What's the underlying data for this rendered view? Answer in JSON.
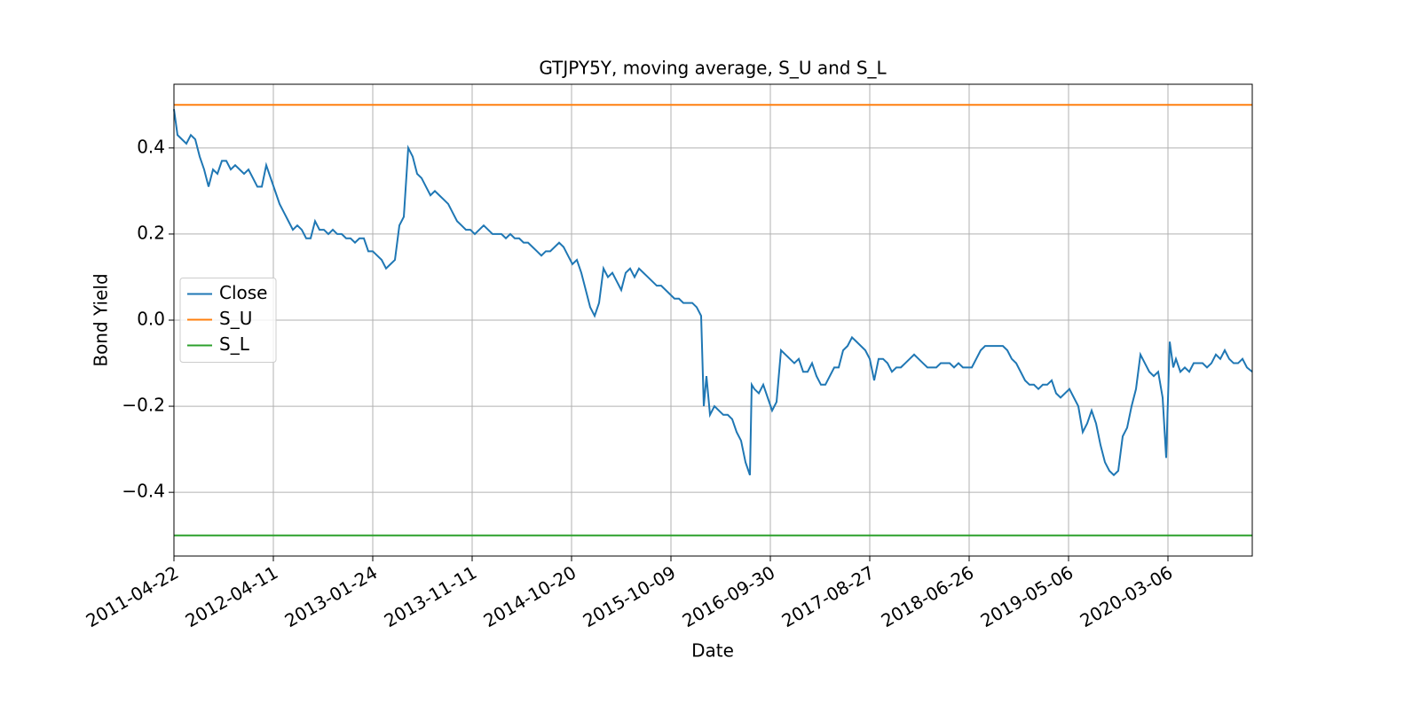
{
  "chart_data": {
    "type": "line",
    "title": "GTJPY5Y, moving average, S_U and S_L",
    "x_label": "Date",
    "y_label": "Bond Yield",
    "xlim": [
      0,
      1215
    ],
    "ylim": [
      -0.548,
      0.548
    ],
    "xticks": [
      {
        "value": 0,
        "label": "2011-04-22"
      },
      {
        "value": 112,
        "label": "2012-04-11"
      },
      {
        "value": 224,
        "label": "2013-01-24"
      },
      {
        "value": 336,
        "label": "2013-11-11"
      },
      {
        "value": 448,
        "label": "2014-10-20"
      },
      {
        "value": 560,
        "label": "2015-10-09"
      },
      {
        "value": 672,
        "label": "2016-09-30"
      },
      {
        "value": 784,
        "label": "2017-08-27"
      },
      {
        "value": 896,
        "label": "2018-06-26"
      },
      {
        "value": 1008,
        "label": "2019-05-06"
      },
      {
        "value": 1120,
        "label": "2020-03-06"
      }
    ],
    "yticks": [
      {
        "value": -0.4,
        "label": "−0.4"
      },
      {
        "value": -0.2,
        "label": "−0.2"
      },
      {
        "value": 0,
        "label": "0.0"
      },
      0.2,
      0.4
    ],
    "grid": true,
    "legend": "center left",
    "series": [
      {
        "name": "Close",
        "color": "#1f77b4",
        "x": [
          0,
          4,
          9,
          14,
          19,
          24,
          29,
          34,
          39,
          44,
          49,
          54,
          59,
          64,
          69,
          74,
          79,
          84,
          89,
          94,
          99,
          104,
          109,
          114,
          119,
          124,
          129,
          134,
          139,
          144,
          149,
          154,
          159,
          164,
          169,
          174,
          179,
          184,
          189,
          194,
          199,
          204,
          209,
          214,
          219,
          224,
          229,
          234,
          239,
          244,
          249,
          254,
          259,
          264,
          269,
          274,
          279,
          284,
          289,
          294,
          299,
          304,
          309,
          314,
          319,
          324,
          329,
          334,
          339,
          344,
          349,
          354,
          359,
          364,
          369,
          374,
          379,
          384,
          389,
          394,
          399,
          404,
          409,
          414,
          419,
          424,
          429,
          434,
          439,
          444,
          449,
          454,
          459,
          464,
          469,
          474,
          479,
          484,
          489,
          494,
          499,
          504,
          509,
          514,
          519,
          524,
          529,
          534,
          539,
          544,
          549,
          554,
          559,
          564,
          569,
          574,
          579,
          584,
          589,
          594,
          597,
          600,
          604,
          609,
          614,
          619,
          624,
          629,
          634,
          639,
          644,
          649,
          651,
          654,
          659,
          664,
          669,
          674,
          679,
          684,
          689,
          694,
          699,
          704,
          709,
          714,
          719,
          724,
          729,
          734,
          739,
          744,
          749,
          754,
          759,
          764,
          769,
          774,
          779,
          784,
          789,
          794,
          799,
          804,
          809,
          814,
          819,
          824,
          829,
          834,
          839,
          844,
          849,
          854,
          859,
          864,
          869,
          874,
          879,
          884,
          889,
          894,
          899,
          904,
          909,
          914,
          919,
          924,
          929,
          934,
          939,
          944,
          949,
          954,
          959,
          964,
          969,
          974,
          979,
          984,
          989,
          994,
          999,
          1004,
          1009,
          1014,
          1019,
          1024,
          1029,
          1034,
          1039,
          1044,
          1049,
          1054,
          1059,
          1064,
          1069,
          1074,
          1079,
          1084,
          1089,
          1094,
          1099,
          1104,
          1109,
          1114,
          1118,
          1122,
          1126,
          1129,
          1134,
          1139,
          1144,
          1149,
          1154,
          1159,
          1164,
          1169,
          1174,
          1179,
          1184,
          1189,
          1194,
          1199,
          1204,
          1209,
          1215
        ],
        "values": [
          0.49,
          0.43,
          0.42,
          0.41,
          0.43,
          0.42,
          0.38,
          0.35,
          0.31,
          0.35,
          0.34,
          0.37,
          0.37,
          0.35,
          0.36,
          0.35,
          0.34,
          0.35,
          0.33,
          0.31,
          0.31,
          0.36,
          0.33,
          0.3,
          0.27,
          0.25,
          0.23,
          0.21,
          0.22,
          0.21,
          0.19,
          0.19,
          0.23,
          0.21,
          0.21,
          0.2,
          0.21,
          0.2,
          0.2,
          0.19,
          0.19,
          0.18,
          0.19,
          0.19,
          0.16,
          0.16,
          0.15,
          0.14,
          0.12,
          0.13,
          0.14,
          0.22,
          0.24,
          0.4,
          0.38,
          0.34,
          0.33,
          0.31,
          0.29,
          0.3,
          0.29,
          0.28,
          0.27,
          0.25,
          0.23,
          0.22,
          0.21,
          0.21,
          0.2,
          0.21,
          0.22,
          0.21,
          0.2,
          0.2,
          0.2,
          0.19,
          0.2,
          0.19,
          0.19,
          0.18,
          0.18,
          0.17,
          0.16,
          0.15,
          0.16,
          0.16,
          0.17,
          0.18,
          0.17,
          0.15,
          0.13,
          0.14,
          0.11,
          0.07,
          0.03,
          0.01,
          0.04,
          0.12,
          0.1,
          0.11,
          0.09,
          0.07,
          0.11,
          0.12,
          0.1,
          0.12,
          0.11,
          0.1,
          0.09,
          0.08,
          0.08,
          0.07,
          0.06,
          0.05,
          0.05,
          0.04,
          0.04,
          0.04,
          0.03,
          0.01,
          -0.2,
          -0.13,
          -0.22,
          -0.2,
          -0.21,
          -0.22,
          -0.22,
          -0.23,
          -0.26,
          -0.28,
          -0.33,
          -0.36,
          -0.15,
          -0.16,
          -0.17,
          -0.15,
          -0.18,
          -0.21,
          -0.19,
          -0.07,
          -0.08,
          -0.09,
          -0.1,
          -0.09,
          -0.12,
          -0.12,
          -0.1,
          -0.13,
          -0.15,
          -0.15,
          -0.13,
          -0.11,
          -0.11,
          -0.07,
          -0.06,
          -0.04,
          -0.05,
          -0.06,
          -0.07,
          -0.09,
          -0.14,
          -0.09,
          -0.09,
          -0.1,
          -0.12,
          -0.11,
          -0.11,
          -0.1,
          -0.09,
          -0.08,
          -0.09,
          -0.1,
          -0.11,
          -0.11,
          -0.11,
          -0.1,
          -0.1,
          -0.1,
          -0.11,
          -0.1,
          -0.11,
          -0.11,
          -0.11,
          -0.09,
          -0.07,
          -0.06,
          -0.06,
          -0.06,
          -0.06,
          -0.06,
          -0.07,
          -0.09,
          -0.1,
          -0.12,
          -0.14,
          -0.15,
          -0.15,
          -0.16,
          -0.15,
          -0.15,
          -0.14,
          -0.17,
          -0.18,
          -0.17,
          -0.16,
          -0.18,
          -0.2,
          -0.26,
          -0.24,
          -0.21,
          -0.24,
          -0.29,
          -0.33,
          -0.35,
          -0.36,
          -0.35,
          -0.27,
          -0.25,
          -0.2,
          -0.16,
          -0.08,
          -0.1,
          -0.12,
          -0.13,
          -0.12,
          -0.18,
          -0.32,
          -0.05,
          -0.11,
          -0.09,
          -0.12,
          -0.11,
          -0.12,
          -0.1,
          -0.1,
          -0.1,
          -0.11,
          -0.1,
          -0.08,
          -0.09,
          -0.07,
          -0.09,
          -0.1,
          -0.1,
          -0.09,
          -0.11,
          -0.12
        ]
      },
      {
        "name": "S_U",
        "color": "#ff7f0e",
        "x": [
          0,
          1215
        ],
        "values": [
          0.5,
          0.5
        ]
      },
      {
        "name": "S_L",
        "color": "#2ca02c",
        "x": [
          0,
          1215
        ],
        "values": [
          -0.5,
          -0.5
        ]
      }
    ]
  }
}
